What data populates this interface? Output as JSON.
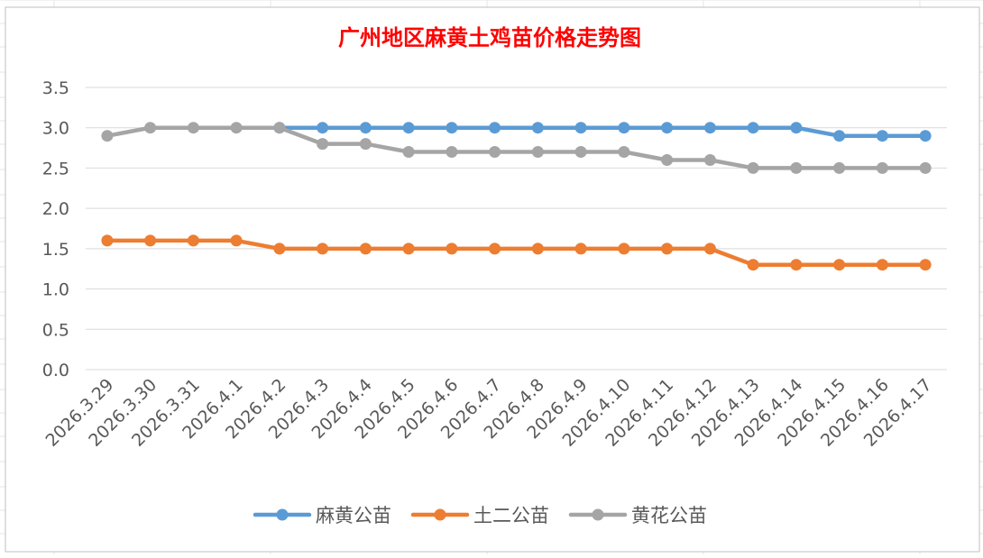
{
  "colors": {
    "title": "#ff0000",
    "axis_text": "#595959",
    "gridline": "#d9d9d9",
    "sheet_grid": "#e6e6e6",
    "border": "#bfbfbf"
  },
  "chart_data": {
    "type": "line",
    "title": "广州地区麻黄土鸡苗价格走势图",
    "xlabel": "",
    "ylabel": "",
    "ylim": [
      0,
      3.5
    ],
    "yticks": [
      "0.0",
      "0.5",
      "1.0",
      "1.5",
      "2.0",
      "2.5",
      "3.0",
      "3.5"
    ],
    "grid": true,
    "legend_position": "bottom",
    "categories": [
      "2026.3.29",
      "2026.3.30",
      "2026.3.31",
      "2026.4.1",
      "2026.4.2",
      "2026.4.3",
      "2026.4.4",
      "2026.4.5",
      "2026.4.6",
      "2026.4.7",
      "2026.4.8",
      "2026.4.9",
      "2026.4.10",
      "2026.4.11",
      "2026.4.12",
      "2026.4.13",
      "2026.4.14",
      "2026.4.15",
      "2026.4.16",
      "2026.4.17"
    ],
    "series": [
      {
        "name": "麻黄公苗",
        "color": "#5b9bd5",
        "values": [
          null,
          null,
          null,
          null,
          3.0,
          3.0,
          3.0,
          3.0,
          3.0,
          3.0,
          3.0,
          3.0,
          3.0,
          3.0,
          3.0,
          3.0,
          3.0,
          2.9,
          2.9,
          2.9
        ]
      },
      {
        "name": "土二公苗",
        "color": "#ed7d31",
        "values": [
          1.6,
          1.6,
          1.6,
          1.6,
          1.5,
          1.5,
          1.5,
          1.5,
          1.5,
          1.5,
          1.5,
          1.5,
          1.5,
          1.5,
          1.5,
          1.3,
          1.3,
          1.3,
          1.3,
          1.3
        ]
      },
      {
        "name": "黄花公苗",
        "color": "#a5a5a5",
        "values": [
          2.9,
          3.0,
          3.0,
          3.0,
          3.0,
          2.8,
          2.8,
          2.7,
          2.7,
          2.7,
          2.7,
          2.7,
          2.7,
          2.6,
          2.6,
          2.5,
          2.5,
          2.5,
          2.5,
          2.5
        ]
      }
    ]
  }
}
